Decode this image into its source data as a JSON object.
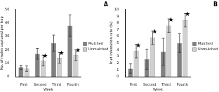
{
  "chart_data": [
    {
      "type": "bar",
      "title": "A",
      "x_label": "Week",
      "y_label": "No. of males captured per trap",
      "categories": [
        "First",
        "Second",
        "Third",
        "Fourth"
      ],
      "series": [
        {
          "name": "Mulched",
          "color": "#808080",
          "values": [
            7,
            17,
            25,
            38
          ],
          "errors": [
            1.5,
            4,
            6,
            8
          ],
          "annotations": [
            null,
            null,
            null,
            null
          ]
        },
        {
          "name": "Unmulched",
          "color": "#d0d0d0",
          "values": [
            6,
            12,
            14,
            16
          ],
          "errors": [
            2,
            4,
            4,
            4
          ],
          "annotations": [
            null,
            "★",
            "★",
            "★"
          ]
        }
      ],
      "ylim": [
        0,
        50
      ],
      "yticks": [
        0,
        10,
        20,
        30,
        40,
        50
      ],
      "legend": "right"
    },
    {
      "type": "bar",
      "title": "B",
      "x_label": "Week",
      "y_label": "Fruit infestation rate (%)",
      "categories": [
        "First",
        "Second",
        "Third",
        "Fourth"
      ],
      "series": [
        {
          "name": "Mulched",
          "color": "#808080",
          "values": [
            1.2,
            2.6,
            3.7,
            5.0
          ],
          "errors": [
            0.7,
            1.5,
            2,
            1.4
          ],
          "annotations": [
            null,
            null,
            null,
            null
          ]
        },
        {
          "name": "Unmulched",
          "color": "#d0d0d0",
          "values": [
            3.8,
            5.8,
            7.6,
            8.4
          ],
          "errors": [
            1,
            1,
            1,
            1
          ],
          "annotations": [
            "★",
            "★",
            "★",
            "★"
          ]
        }
      ],
      "ylim": [
        0,
        10
      ],
      "yticks": [
        0,
        1,
        2,
        3,
        4,
        5,
        6,
        7,
        8,
        9,
        10
      ],
      "legend": "right"
    }
  ]
}
